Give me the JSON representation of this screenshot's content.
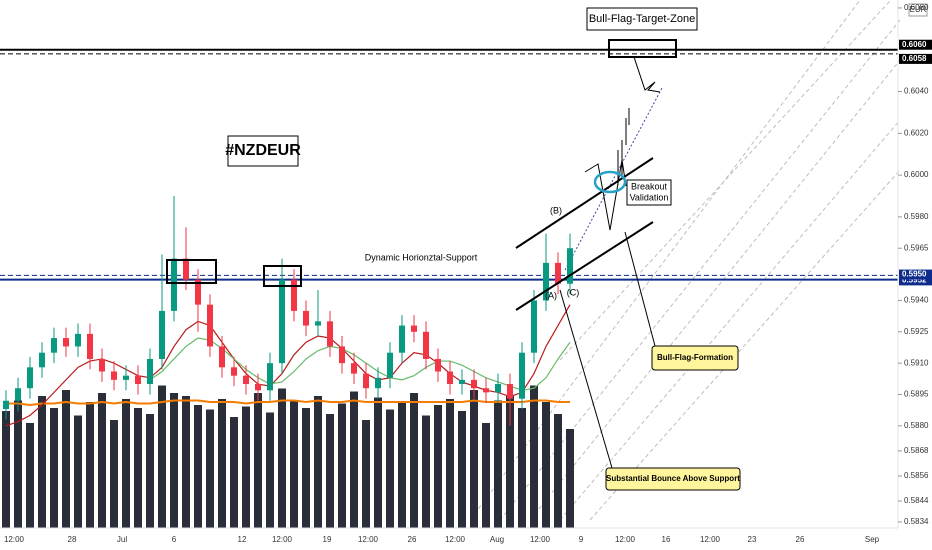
{
  "chart_data": {
    "type": "candlestick",
    "title": "#NZDEUR",
    "currency": "EUR",
    "ylim": [
      0.58311,
      0.60838
    ],
    "yticks": [
      {
        "value": 0.608,
        "label": "0.6080"
      },
      {
        "value": 0.604,
        "label": "0.6040"
      },
      {
        "value": 0.602,
        "label": "0.6020"
      },
      {
        "value": 0.6,
        "label": "0.6000"
      },
      {
        "value": 0.598,
        "label": "0.5980"
      },
      {
        "value": 0.5965,
        "label": "0.5965"
      },
      {
        "value": 0.594,
        "label": "0.5940"
      },
      {
        "value": 0.5925,
        "label": "0.5925"
      },
      {
        "value": 0.591,
        "label": "0.5910"
      },
      {
        "value": 0.5895,
        "label": "0.5895"
      },
      {
        "value": 0.588,
        "label": "0.5880"
      },
      {
        "value": 0.5868,
        "label": "0.5868"
      },
      {
        "value": 0.5856,
        "label": "0.5856"
      },
      {
        "value": 0.5844,
        "label": "0.5844"
      },
      {
        "value": 0.5834,
        "label": "0.5834"
      }
    ],
    "x_labels": [
      "12:00",
      "28",
      "Jul",
      "6",
      "12",
      "12:00",
      "19",
      "12:00",
      "26",
      "12:00",
      "Aug",
      "12:00",
      "9",
      "12:00",
      "16",
      "12:00",
      "23",
      "26",
      "Sep"
    ],
    "up_color": "#089981",
    "down_color": "#f23645",
    "open": [
      0.5888,
      0.5892,
      0.5898,
      0.5908,
      0.5915,
      0.5922,
      0.5918,
      0.5924,
      0.5912,
      0.5906,
      0.5902,
      0.5904,
      0.59,
      0.5912,
      0.5935,
      0.596,
      0.595,
      0.5938,
      0.5918,
      0.5908,
      0.5904,
      0.59,
      0.5897,
      0.591,
      0.595,
      0.5935,
      0.5928,
      0.593,
      0.5918,
      0.591,
      0.5905,
      0.5898,
      0.5903,
      0.5915,
      0.5928,
      0.5925,
      0.5912,
      0.5906,
      0.59,
      0.5902,
      0.5898,
      0.5896,
      0.59,
      0.5893,
      0.5915,
      0.594,
      0.5958,
      0.5948
    ],
    "high": [
      0.5897,
      0.5903,
      0.5913,
      0.592,
      0.5927,
      0.5927,
      0.5929,
      0.5929,
      0.5917,
      0.5911,
      0.5909,
      0.5909,
      0.5917,
      0.5962,
      0.599,
      0.5975,
      0.5955,
      0.5943,
      0.5923,
      0.5913,
      0.5909,
      0.5905,
      0.5915,
      0.596,
      0.5955,
      0.594,
      0.5945,
      0.5935,
      0.5923,
      0.5915,
      0.591,
      0.5908,
      0.592,
      0.5933,
      0.5933,
      0.593,
      0.5917,
      0.5911,
      0.5907,
      0.5907,
      0.5903,
      0.5905,
      0.5905,
      0.592,
      0.5945,
      0.5972,
      0.5963,
      0.5972
    ],
    "low": [
      0.5883,
      0.5887,
      0.5893,
      0.5903,
      0.591,
      0.5913,
      0.5913,
      0.5907,
      0.5901,
      0.5897,
      0.5897,
      0.5895,
      0.5895,
      0.5907,
      0.593,
      0.5945,
      0.5925,
      0.5913,
      0.5903,
      0.5899,
      0.5895,
      0.5892,
      0.5892,
      0.5905,
      0.593,
      0.5923,
      0.5923,
      0.5913,
      0.5905,
      0.59,
      0.5893,
      0.5893,
      0.5898,
      0.591,
      0.592,
      0.5907,
      0.5901,
      0.5895,
      0.5895,
      0.5893,
      0.5891,
      0.5891,
      0.588,
      0.5888,
      0.591,
      0.5935,
      0.5943,
      0.5943
    ],
    "close": [
      0.5892,
      0.5898,
      0.5908,
      0.5915,
      0.5922,
      0.5918,
      0.5924,
      0.5912,
      0.5906,
      0.5902,
      0.5904,
      0.59,
      0.5912,
      0.5935,
      0.596,
      0.595,
      0.5938,
      0.5918,
      0.5908,
      0.5904,
      0.59,
      0.5897,
      0.591,
      0.595,
      0.5935,
      0.5928,
      0.593,
      0.5918,
      0.591,
      0.5905,
      0.5898,
      0.5903,
      0.5915,
      0.5928,
      0.5925,
      0.5912,
      0.5906,
      0.59,
      0.5902,
      0.5898,
      0.5896,
      0.59,
      0.5893,
      0.5915,
      0.594,
      0.5958,
      0.5948,
      0.5965
    ],
    "volume": {
      "color": "#2a2e39",
      "vlim": [
        0,
        100
      ],
      "values": [
        78,
        85,
        70,
        88,
        80,
        92,
        75,
        84,
        90,
        72,
        86,
        80,
        76,
        95,
        90,
        88,
        82,
        79,
        86,
        74,
        81,
        90,
        77,
        93,
        85,
        80,
        88,
        76,
        83,
        91,
        72,
        87,
        79,
        84,
        90,
        75,
        82,
        86,
        78,
        92,
        70,
        85,
        88,
        80,
        95,
        84,
        76,
        66
      ],
      "ma_color": "#f57c00",
      "ma": [
        83,
        83,
        82,
        83,
        83,
        84,
        83,
        83,
        84,
        83,
        84,
        83,
        83,
        84,
        85,
        85,
        85,
        84,
        84,
        84,
        83,
        84,
        84,
        85,
        85,
        84,
        85,
        84,
        84,
        85,
        84,
        84,
        84,
        84,
        84,
        84,
        84,
        84,
        84,
        85,
        84,
        84,
        84,
        84,
        85,
        85,
        84,
        84
      ]
    },
    "series": [
      {
        "color": "#b71c1c",
        "values": [
          0.588,
          0.5882,
          0.5885,
          0.589,
          0.5896,
          0.5902,
          0.5908,
          0.5911,
          0.5912,
          0.591,
          0.5907,
          0.5904,
          0.5903,
          0.5908,
          0.5918,
          0.5926,
          0.593,
          0.5928,
          0.592,
          0.5912,
          0.5905,
          0.59,
          0.5899,
          0.5905,
          0.5914,
          0.592,
          0.5923,
          0.5922,
          0.5917,
          0.5911,
          0.5905,
          0.5902,
          0.5903,
          0.591,
          0.5915,
          0.5914,
          0.591,
          0.5905,
          0.5901,
          0.5899,
          0.5897,
          0.5896,
          0.5894,
          0.5896,
          0.5905,
          0.5918,
          0.5928,
          0.5938
        ]
      },
      {
        "color": "#66bb6a",
        "values": [
          null,
          null,
          null,
          null,
          null,
          null,
          null,
          null,
          null,
          null,
          null,
          null,
          0.5902,
          0.5906,
          0.5912,
          0.5918,
          0.5922,
          0.5921,
          0.5917,
          0.5912,
          0.5907,
          0.5903,
          0.59,
          0.5901,
          0.5906,
          0.5912,
          0.5916,
          0.5918,
          0.5917,
          0.5914,
          0.591,
          0.5906,
          0.5903,
          0.5902,
          0.5904,
          0.5908,
          0.5911,
          0.5911,
          0.5909,
          0.5906,
          0.5903,
          0.5901,
          0.5899,
          0.5897,
          0.5898,
          0.5903,
          0.5912,
          0.592
        ]
      }
    ],
    "levels": [
      {
        "value": 0.606,
        "label": "0.6060",
        "color": "#000000",
        "dashed": false
      },
      {
        "value": 0.6058,
        "label": "0.6058",
        "color": "#000000",
        "dashed": true
      },
      {
        "value": 0.5952,
        "label": "0.5952",
        "color": "#0d2c8c",
        "dashed": true
      },
      {
        "value": 0.595,
        "label": "0.5950",
        "color": "#0d2c8c",
        "dashed": false
      }
    ],
    "annotations": {
      "target_zone": "Bull-Flag-Target-Zone",
      "support": "Dynamic Horionztal-Support",
      "breakout": [
        "Breakout",
        "Validation"
      ],
      "wave_b": "(B)",
      "wave_a": "(A)",
      "wave_c": "(C)",
      "flag": "Bull-Flag-Formation",
      "bounce": "Substantial Bounce Above Support"
    }
  }
}
